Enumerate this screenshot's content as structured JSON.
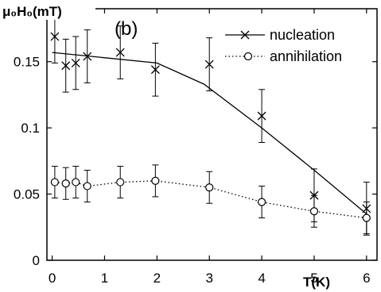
{
  "chart_data": {
    "type": "line",
    "panel_label": "(b)",
    "ylabel": "μ₀H₀(mT)",
    "xlabel": "T(K)",
    "xlim": [
      -0.1,
      6.2
    ],
    "ylim": [
      0,
      0.19
    ],
    "xticks": [
      "0",
      "1",
      "2",
      "3",
      "4",
      "5",
      "6"
    ],
    "yticks": [
      "0",
      "0.05",
      "0.1",
      "0.15"
    ],
    "legend_position": "top-right",
    "grid": false,
    "series": [
      {
        "name": "nucleation",
        "marker": "x",
        "line_style": "solid",
        "fit_line": {
          "x": [
            0,
            2,
            2.9,
            4,
            5,
            6
          ],
          "y": [
            0.157,
            0.149,
            0.133,
            0.1,
            0.068,
            0.035
          ]
        },
        "points": [
          {
            "x": 0.05,
            "y": 0.169,
            "err": 0.02
          },
          {
            "x": 0.26,
            "y": 0.147,
            "err": 0.02
          },
          {
            "x": 0.45,
            "y": 0.149,
            "err": 0.02
          },
          {
            "x": 0.67,
            "y": 0.154,
            "err": 0.02
          },
          {
            "x": 1.3,
            "y": 0.157,
            "err": 0.02
          },
          {
            "x": 1.97,
            "y": 0.144,
            "err": 0.02
          },
          {
            "x": 3.0,
            "y": 0.148,
            "err": 0.02
          },
          {
            "x": 4.0,
            "y": 0.109,
            "err": 0.02
          },
          {
            "x": 5.0,
            "y": 0.049,
            "err": 0.02
          },
          {
            "x": 6.0,
            "y": 0.039,
            "err": 0.02
          }
        ]
      },
      {
        "name": "annihilation",
        "marker": "o",
        "line_style": "dotted",
        "points": [
          {
            "x": 0.05,
            "y": 0.059,
            "err": 0.012
          },
          {
            "x": 0.26,
            "y": 0.058,
            "err": 0.012
          },
          {
            "x": 0.45,
            "y": 0.059,
            "err": 0.012
          },
          {
            "x": 0.67,
            "y": 0.056,
            "err": 0.012
          },
          {
            "x": 1.3,
            "y": 0.059,
            "err": 0.012
          },
          {
            "x": 1.97,
            "y": 0.06,
            "err": 0.012
          },
          {
            "x": 3.0,
            "y": 0.055,
            "err": 0.012
          },
          {
            "x": 4.0,
            "y": 0.044,
            "err": 0.012
          },
          {
            "x": 5.0,
            "y": 0.037,
            "err": 0.012
          },
          {
            "x": 6.0,
            "y": 0.032,
            "err": 0.012
          }
        ]
      }
    ]
  }
}
